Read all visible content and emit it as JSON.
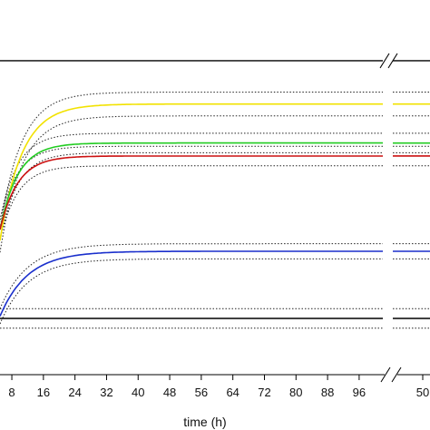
{
  "chart_data": {
    "type": "line",
    "title": "",
    "xlabel": "time (h)",
    "ylabel": "",
    "x_ticks": [
      8,
      16,
      24,
      32,
      40,
      48,
      56,
      64,
      72,
      80,
      88,
      96
    ],
    "x_ticks_right": [
      "50"
    ],
    "xlim_left": [
      5,
      102
    ],
    "axis_break": true,
    "series": [
      {
        "color": "#f2e200",
        "plateau": 0.8,
        "onset": 0.17,
        "tau": 5.5,
        "band": 0.055
      },
      {
        "color": "#22cc22",
        "plateau": 0.62,
        "onset": 0.22,
        "tau": 4.5,
        "band": 0.045
      },
      {
        "color": "#cc1111",
        "plateau": 0.56,
        "onset": 0.22,
        "tau": 4.5,
        "band": 0.045
      },
      {
        "color": "#1a2fcc",
        "plateau": 0.12,
        "onset": -0.18,
        "tau": 7.0,
        "band": 0.035
      },
      {
        "color": "#000000",
        "plateau": -0.19,
        "onset": -0.19,
        "tau": 1.0,
        "band": 0.045
      }
    ],
    "reference_line": 1.0,
    "ylim": [
      -0.5,
      1.05
    ],
    "grid": false,
    "legend": "none"
  }
}
